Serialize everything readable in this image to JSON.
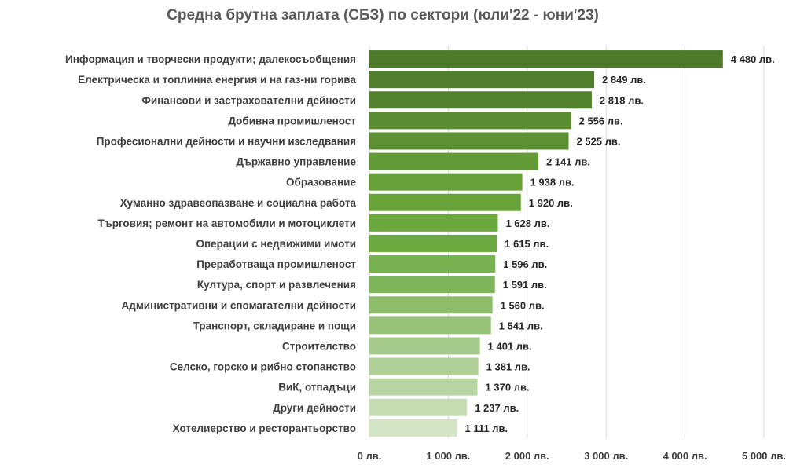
{
  "chart_data": {
    "type": "bar",
    "orientation": "horizontal",
    "title": "Средна брутна заплата (СБЗ) по сектори (юли'22 - юни'23)",
    "xlabel": "",
    "ylabel": "",
    "xlim": [
      0,
      5000
    ],
    "grid": true,
    "legend": "none",
    "categories": [
      "Информация и творчески продукти; далекосъобщения",
      "Електрическа и топлинна енергия и на газ-ни горива",
      "Финансови и застрахователни дейности",
      "Добивна промишленост",
      "Професионални дейности и научни изследвания",
      "Държавно управление",
      "Образование",
      "Хуманно здравеопазване и социална работа",
      "Търговия; ремонт на автомобили и мотоциклети",
      "Операции с недвижими имоти",
      "Преработваща промишленост",
      "Култура, спорт и развлечения",
      "Административни и спомагателни дейности",
      "Транспорт, складиране и пощи",
      "Строителство",
      "Селско, горско и рибно стопанство",
      "ВиК, отпадъци",
      "Други дейности",
      "Хотелиерство и ресторантьорство"
    ],
    "values": [
      4480,
      2849,
      2818,
      2556,
      2525,
      2141,
      1938,
      1920,
      1628,
      1615,
      1596,
      1591,
      1560,
      1541,
      1401,
      1381,
      1370,
      1237,
      1111
    ],
    "value_labels": [
      "4 480 лв.",
      "2 849 лв.",
      "2 818 лв.",
      "2 556 лв.",
      "2 525 лв.",
      "2 141 лв.",
      "1 938 лв.",
      "1 920 лв.",
      "1 628 лв.",
      "1 615 лв.",
      "1 596 лв.",
      "1 591 лв.",
      "1 560 лв.",
      "1 541 лв.",
      "1 401 лв.",
      "1 381 лв.",
      "1 370 лв.",
      "1 237 лв.",
      "1 111 лв."
    ],
    "bar_colors": [
      "#4e7a2b",
      "#507e2c",
      "#53822e",
      "#5a8d31",
      "#5c9032",
      "#629a35",
      "#66a037",
      "#68a339",
      "#6aa83d",
      "#6caa40",
      "#78b150",
      "#7fb55a",
      "#8dbd6b",
      "#97c278",
      "#a5ca8b",
      "#afd097",
      "#b8d5a3",
      "#c6ddb4",
      "#d4e5c6"
    ],
    "x_ticks": [
      0,
      1000,
      2000,
      3000,
      4000,
      5000
    ],
    "x_tick_labels": [
      "0 лв.",
      "1 000 лв.",
      "2 000 лв.",
      "3 000 лв.",
      "4 000 лв.",
      "5 000 лв."
    ]
  }
}
